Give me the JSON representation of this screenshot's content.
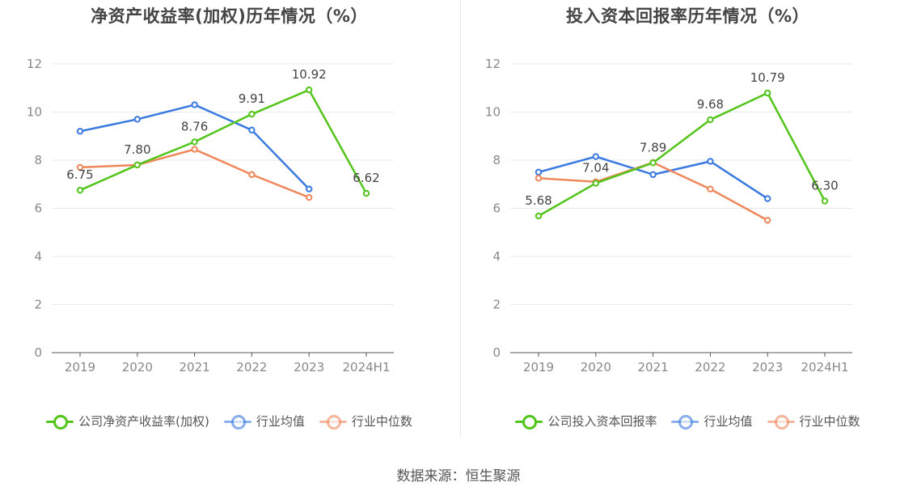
{
  "colors": {
    "company": "#52c41a",
    "industry_avg": "#3a7ae0",
    "industry_median": "#f0875a",
    "grid": "#e6e9ee",
    "axis": "#888888"
  },
  "legend_labels": {
    "industry_avg": "行业均值",
    "industry_median": "行业中位数"
  },
  "source": "数据来源：恒生聚源",
  "chart_data": [
    {
      "type": "line",
      "title": "净资产收益率(加权)历年情况（%）",
      "categories": [
        "2019",
        "2020",
        "2021",
        "2022",
        "2023",
        "2024H1"
      ],
      "ylim": [
        0,
        12
      ],
      "yticks": [
        "0",
        "2",
        "4",
        "6",
        "8",
        "10",
        "12"
      ],
      "grid": true,
      "legend": "bottom",
      "series": [
        {
          "key": "company",
          "name": "公司净资产收益率(加权)",
          "values": [
            6.75,
            7.8,
            8.76,
            9.91,
            10.92,
            6.62
          ],
          "labels": [
            "6.75",
            "7.80",
            "8.76",
            "9.91",
            "10.92",
            "6.62"
          ]
        },
        {
          "key": "industry_avg",
          "name": "行业均值",
          "values": [
            9.2,
            9.7,
            10.3,
            9.25,
            6.8,
            null
          ]
        },
        {
          "key": "industry_median",
          "name": "行业中位数",
          "values": [
            7.7,
            7.8,
            8.45,
            7.4,
            6.45,
            null
          ]
        }
      ]
    },
    {
      "type": "line",
      "title": "投入资本回报率历年情况（%）",
      "categories": [
        "2019",
        "2020",
        "2021",
        "2022",
        "2023",
        "2024H1"
      ],
      "ylim": [
        0,
        12
      ],
      "yticks": [
        "0",
        "2",
        "4",
        "6",
        "8",
        "10",
        "12"
      ],
      "grid": true,
      "legend": "bottom",
      "series": [
        {
          "key": "company",
          "name": "公司投入资本回报率",
          "values": [
            5.68,
            7.04,
            7.89,
            9.68,
            10.79,
            6.3
          ],
          "labels": [
            "5.68",
            "7.04",
            "7.89",
            "9.68",
            "10.79",
            "6.30"
          ]
        },
        {
          "key": "industry_avg",
          "name": "行业均值",
          "values": [
            7.5,
            8.15,
            7.4,
            7.95,
            6.4,
            null
          ]
        },
        {
          "key": "industry_median",
          "name": "行业中位数",
          "values": [
            7.25,
            7.1,
            7.9,
            6.8,
            5.5,
            null
          ]
        }
      ]
    }
  ]
}
